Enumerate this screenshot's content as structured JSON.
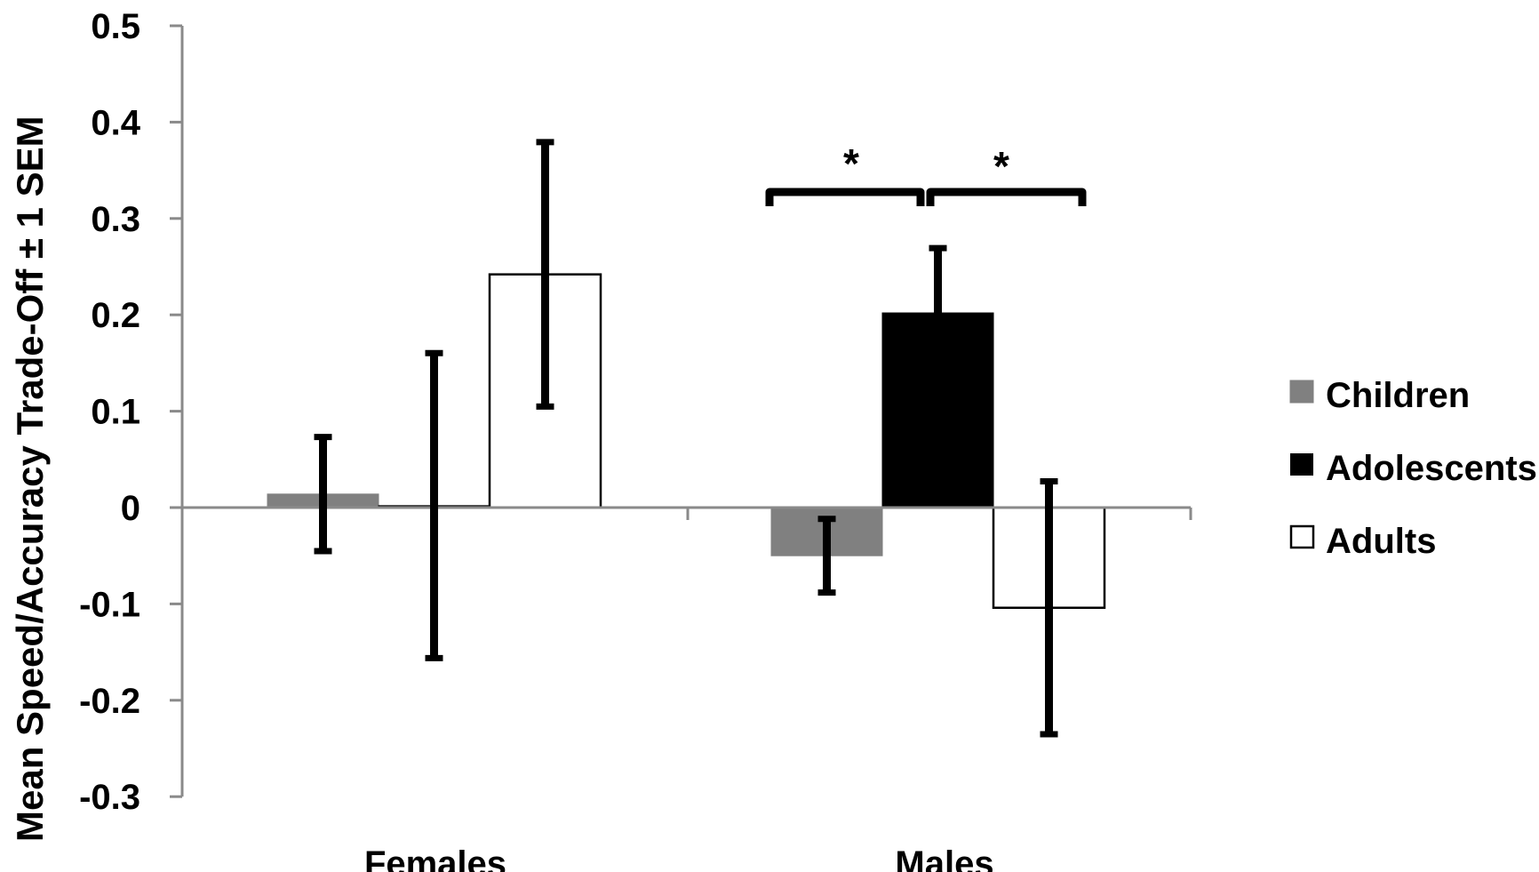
{
  "chart_data": {
    "type": "bar",
    "title": "",
    "xlabel": "",
    "ylabel": "Mean Speed/Accuracy Trade-Off ± 1 SEM",
    "ylim": [
      -0.3,
      0.5
    ],
    "yticks": [
      0.5,
      0.4,
      0.3,
      0.2,
      0.1,
      0,
      -0.1,
      -0.2,
      -0.3
    ],
    "ytick_labels": [
      "0.5",
      "0.4",
      "0.3",
      "0.2",
      "0.1",
      "0",
      "-0.1",
      "-0.2",
      "-0.3"
    ],
    "grid": false,
    "legend_position": "right",
    "categories": [
      "Females",
      "Males"
    ],
    "series": [
      {
        "name": "Children",
        "color": "#808080",
        "values": [
          0.014,
          -0.05
        ],
        "sem": [
          0.062,
          0.041
        ]
      },
      {
        "name": "Adolescents",
        "color": "#000000",
        "values": [
          0.002,
          0.202
        ],
        "sem": [
          0.161,
          0.07
        ]
      },
      {
        "name": "Adults",
        "color": "#ffffff",
        "values": [
          0.242,
          -0.104
        ],
        "sem": [
          0.14,
          0.134
        ]
      }
    ],
    "annotations": [
      {
        "text": "*",
        "between": [
          "Males/Children",
          "Males/Adolescents"
        ]
      },
      {
        "text": "*",
        "between": [
          "Males/Adolescents",
          "Males/Adults"
        ]
      }
    ]
  },
  "legend": {
    "items": [
      {
        "label": "Children",
        "color": "#808080"
      },
      {
        "label": "Adolescents",
        "color": "#000000"
      },
      {
        "label": "Adults",
        "color": "#ffffff"
      }
    ]
  },
  "significance": {
    "left": "*",
    "right": "*"
  }
}
